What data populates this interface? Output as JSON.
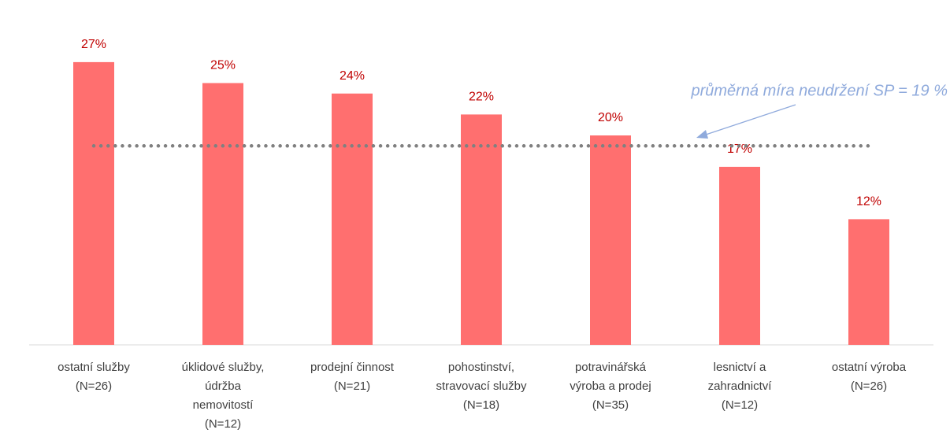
{
  "chart_data": {
    "type": "bar",
    "categories": [
      [
        "ostatní služby",
        "(N=26)"
      ],
      [
        "úklidové služby,",
        "údržba",
        "nemovitostí",
        "(N=12)"
      ],
      [
        "prodejní činnost",
        "(N=21)"
      ],
      [
        "pohostinství,",
        "stravovací služby",
        "(N=18)"
      ],
      [
        "potravinářská",
        "výroba a prodej",
        "(N=35)"
      ],
      [
        "lesnictví a",
        "zahradnictví",
        "(N=12)"
      ],
      [
        "ostatní výroba",
        "(N=26)"
      ]
    ],
    "values": [
      27,
      25,
      24,
      22,
      20,
      17,
      12
    ],
    "value_labels": [
      "27%",
      "25%",
      "24%",
      "22%",
      "20%",
      "17%",
      "12%"
    ],
    "color": "#ff6f6f",
    "ylim": [
      0,
      30
    ],
    "average": 19,
    "annotation": "průměrná míra neudržení SP = 19 %"
  }
}
